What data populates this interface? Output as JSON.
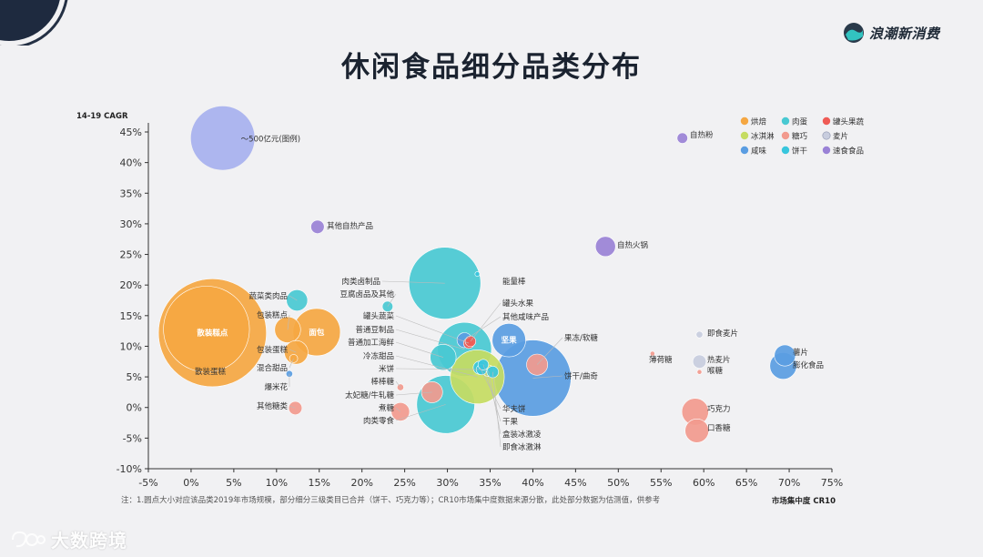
{
  "header": {
    "title": "休闲食品细分品类分布",
    "brand": "浪潮新消费"
  },
  "footer": {
    "note": "注：1.圆点大小对应该品类2019年市场规模，部分细分三级类目已合并（饼干、巧克力等）；CR10市场集中度数据来源分散，此处部分数据为估测值，供参考",
    "watermark": "大数跨境"
  },
  "colors": {
    "烘焙": "#f5a742",
    "肉蛋": "#49c9d2",
    "罐头果蔬": "#ef5b55",
    "冰淇淋": "#c5dc62",
    "糖巧": "#f29a8e",
    "麦片": "#c8cdde",
    "咸味": "#5a9de2",
    "饼干": "#38c6dd",
    "速食食品": "#9a82d6"
  },
  "chart_data": {
    "type": "scatter",
    "xlabel": "市场集中度 CR10",
    "ylabel": "14-19 CAGR",
    "xlim": [
      -5,
      75
    ],
    "ylim": [
      -10,
      45
    ],
    "xticks": [
      -5,
      0,
      5,
      10,
      15,
      20,
      25,
      30,
      35,
      40,
      45,
      50,
      55,
      60,
      65,
      70,
      75
    ],
    "yticks": [
      -10,
      -5,
      0,
      5,
      10,
      15,
      20,
      25,
      30,
      35,
      40,
      45
    ],
    "legend": {
      "position": "top-right",
      "entries": [
        "烘焙",
        "肉蛋",
        "罐头果蔬",
        "冰淇淋",
        "糖巧",
        "麦片",
        "咸味",
        "饼干",
        "速食食品"
      ]
    },
    "size_reference": {
      "label": "～500亿元(图例)",
      "x": 3.7,
      "y": 44
    },
    "points": [
      {
        "name": "散装糕点",
        "category": "烘焙",
        "x": 2.5,
        "y": 12.2,
        "size": 520,
        "label_inside": true
      },
      {
        "name": "散装蛋糕",
        "category": "烘焙",
        "x": 1.8,
        "y": 12.8,
        "size": 330,
        "label_inside": false
      },
      {
        "name": "面包",
        "category": "烘焙",
        "x": 14.7,
        "y": 12.3,
        "size": 100,
        "label_inside": true
      },
      {
        "name": "包装糕点",
        "category": "烘焙",
        "x": 11.3,
        "y": 12.7,
        "size": 30,
        "label_inside": false
      },
      {
        "name": "包装蛋糕",
        "category": "烘焙",
        "x": 12.3,
        "y": 9.0,
        "size": 25,
        "label_inside": false
      },
      {
        "name": "混合甜品",
        "category": "烘焙",
        "x": 12.0,
        "y": 8.0,
        "size": 3,
        "label_inside": false
      },
      {
        "name": "蔬菜类肉品",
        "category": "肉蛋",
        "x": 12.4,
        "y": 17.5,
        "size": 20,
        "label_inside": false
      },
      {
        "name": "爆米花",
        "category": "咸味",
        "x": 11.5,
        "y": 5.5,
        "size": 2,
        "label_inside": false
      },
      {
        "name": "其他糖类",
        "category": "糖巧",
        "x": 12.2,
        "y": -0.1,
        "size": 8,
        "label_inside": false
      },
      {
        "name": "其他自热产品",
        "category": "速食食品",
        "x": 14.8,
        "y": 29.5,
        "size": 8,
        "label_inside": false
      },
      {
        "name": "肉类卤制品",
        "category": "肉蛋",
        "x": 29.7,
        "y": 20.3,
        "size": 230,
        "label_inside": false
      },
      {
        "name": "豆腐卤品及其他",
        "category": "肉蛋",
        "x": 23.0,
        "y": 16.5,
        "size": 5,
        "label_inside": false
      },
      {
        "name": "罐头蔬菜",
        "category": "罐头果蔬",
        "x": 32.5,
        "y": 10.5,
        "size": 5,
        "label_inside": false
      },
      {
        "name": "普通豆制品",
        "category": "肉蛋",
        "x": 32.0,
        "y": 9.5,
        "size": 130,
        "label_inside": false
      },
      {
        "name": "普通加工海鲜",
        "category": "肉蛋",
        "x": 29.5,
        "y": 8.2,
        "size": 30,
        "label_inside": false
      },
      {
        "name": "冷冻甜品",
        "category": "冰淇淋",
        "x": 33.5,
        "y": 5.0,
        "size": 130,
        "label_inside": false
      },
      {
        "name": "米饼",
        "category": "饼干",
        "x": 34.0,
        "y": 6.2,
        "size": 5,
        "label_inside": false
      },
      {
        "name": "棒棒糖",
        "category": "糖巧",
        "x": 24.5,
        "y": 3.3,
        "size": 2,
        "label_inside": false
      },
      {
        "name": "太妃糖/牛轧糖",
        "category": "糖巧",
        "x": 28.2,
        "y": 2.5,
        "size": 20,
        "label_inside": false
      },
      {
        "name": "煮糖",
        "category": "糖巧",
        "x": 24.5,
        "y": -0.7,
        "size": 15,
        "label_inside": false
      },
      {
        "name": "肉类零食",
        "category": "肉蛋",
        "x": 29.8,
        "y": 0.5,
        "size": 150,
        "label_inside": false
      },
      {
        "name": "能量棒",
        "category": "饼干",
        "x": 33.5,
        "y": 21.8,
        "size": 1,
        "label_inside": false
      },
      {
        "name": "罐头水果",
        "category": "罐头果蔬",
        "x": 32.7,
        "y": 10.8,
        "size": 5,
        "label_inside": false
      },
      {
        "name": "其他咸味产品",
        "category": "咸味",
        "x": 32.0,
        "y": 11.0,
        "size": 10,
        "label_inside": false
      },
      {
        "name": "坚果",
        "category": "咸味",
        "x": 37.2,
        "y": 11.0,
        "size": 50,
        "label_inside": true
      },
      {
        "name": "果冻/软糖",
        "category": "糖巧",
        "x": 40.5,
        "y": 7.0,
        "size": 20,
        "label_inside": false
      },
      {
        "name": "饼干/曲奇",
        "category": "咸味",
        "x": 40.0,
        "y": 4.8,
        "size": 260,
        "label_inside": false
      },
      {
        "name": "华夫饼",
        "category": "饼干",
        "x": 33.8,
        "y": 6.5,
        "size": 8,
        "label_inside": false
      },
      {
        "name": "干果",
        "category": "饼干",
        "x": 34.2,
        "y": 7.0,
        "size": 5,
        "label_inside": false
      },
      {
        "name": "盒装冰激凌",
        "category": "冰淇淋",
        "x": 34.8,
        "y": 6.0,
        "size": 6,
        "label_inside": false
      },
      {
        "name": "即食冰激淋",
        "category": "饼干",
        "x": 35.3,
        "y": 5.8,
        "size": 6,
        "label_inside": false
      },
      {
        "name": "自热粉",
        "category": "速食食品",
        "x": 57.5,
        "y": 44,
        "size": 5,
        "label_inside": false
      },
      {
        "name": "自热火锅",
        "category": "速食食品",
        "x": 48.5,
        "y": 26.3,
        "size": 18,
        "label_inside": false
      },
      {
        "name": "即食麦片",
        "category": "麦片",
        "x": 59.5,
        "y": 11.9,
        "size": 2,
        "label_inside": false
      },
      {
        "name": "热麦片",
        "category": "麦片",
        "x": 59.5,
        "y": 7.5,
        "size": 8,
        "label_inside": false
      },
      {
        "name": "喉糖",
        "category": "糖巧",
        "x": 59.5,
        "y": 5.8,
        "size": 1,
        "label_inside": false
      },
      {
        "name": "薄荷糖",
        "category": "糖巧",
        "x": 54.0,
        "y": 8.8,
        "size": 1,
        "label_inside": false
      },
      {
        "name": "巧克力",
        "category": "糖巧",
        "x": 59.0,
        "y": -0.7,
        "size": 32,
        "label_inside": false
      },
      {
        "name": "口香糖",
        "category": "糖巧",
        "x": 59.2,
        "y": -3.8,
        "size": 25,
        "label_inside": false
      },
      {
        "name": "薯片",
        "category": "咸味",
        "x": 69.5,
        "y": 8.5,
        "size": 20,
        "label_inside": false
      },
      {
        "name": "膨化食品",
        "category": "咸味",
        "x": 69.3,
        "y": 6.8,
        "size": 32,
        "label_inside": false
      }
    ]
  }
}
